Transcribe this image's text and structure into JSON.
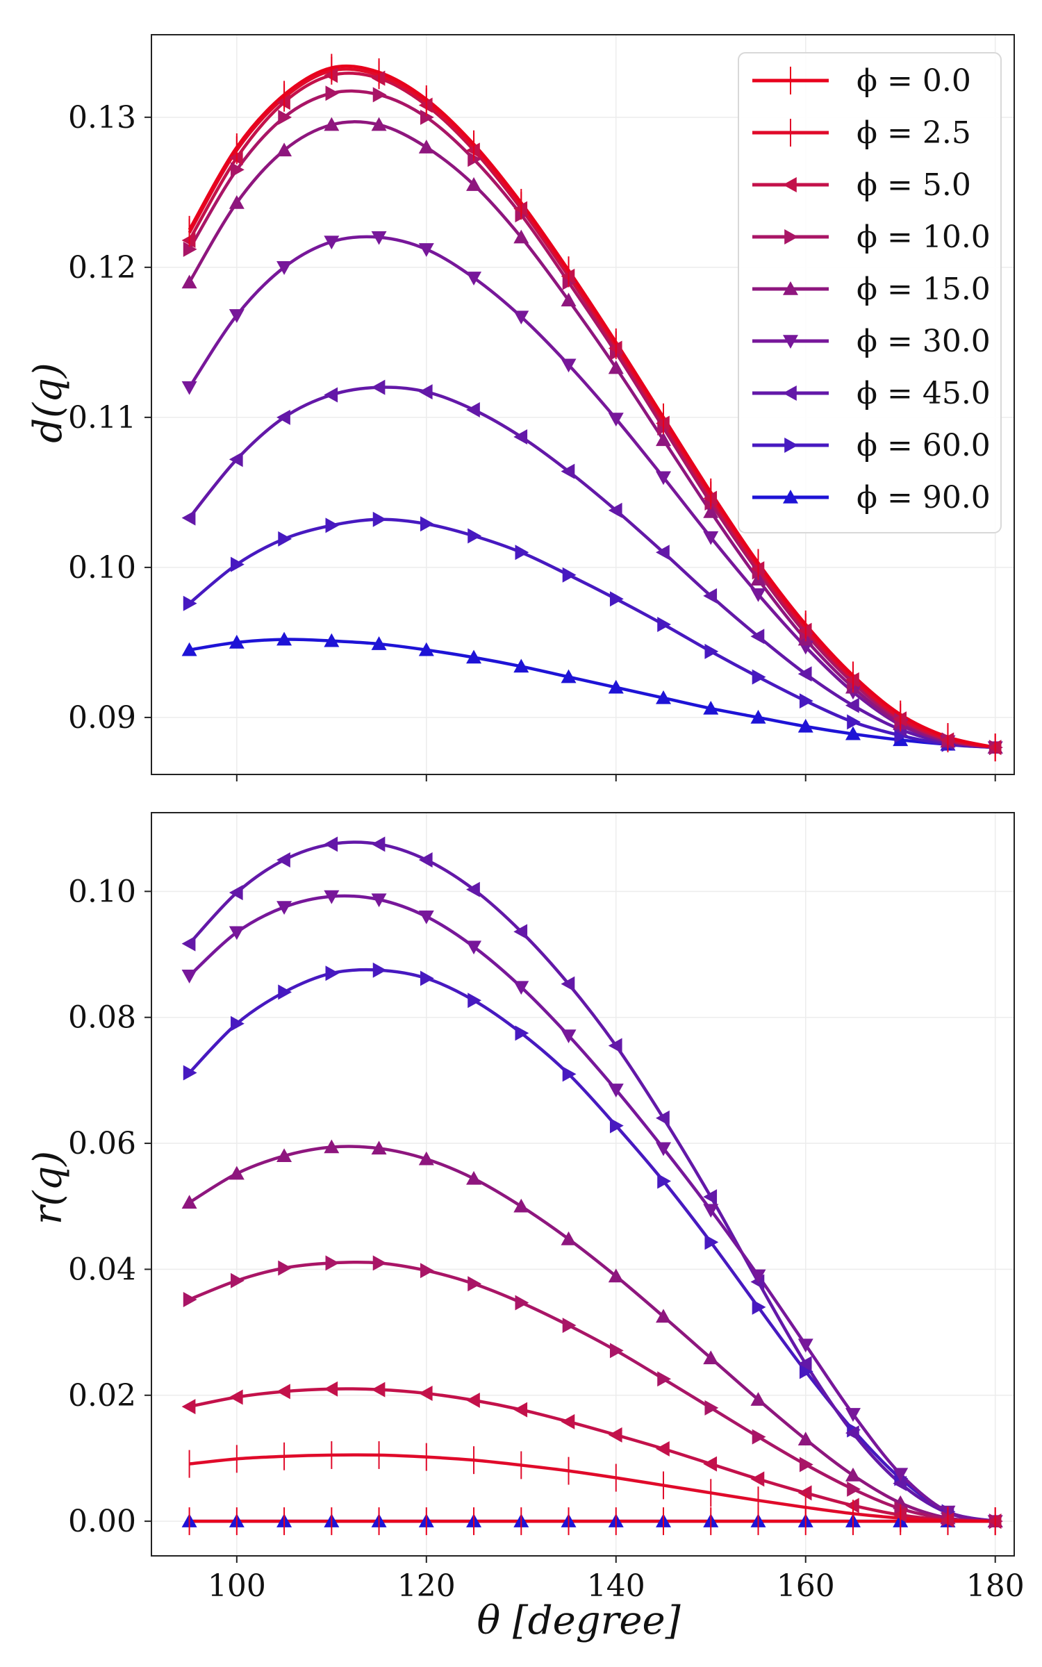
{
  "chart_data": [
    {
      "type": "line",
      "ylabel": "d(q)",
      "xlabel": "",
      "xlim": [
        91,
        182
      ],
      "ylim": [
        0.0862,
        0.1355
      ],
      "xticks": [
        100,
        120,
        140,
        160,
        180
      ],
      "xtick_labels": [
        "",
        "",
        "",
        "",
        ""
      ],
      "yticks": [
        0.09,
        0.1,
        0.11,
        0.12,
        0.13
      ],
      "ytick_labels": [
        "0.09",
        "0.10",
        "0.11",
        "0.12",
        "0.13"
      ],
      "grid": true,
      "legend_position": "top-right",
      "x": [
        95,
        100,
        105,
        110,
        115,
        120,
        125,
        130,
        135,
        140,
        145,
        150,
        155,
        160,
        165,
        170,
        175,
        180
      ],
      "series": [
        {
          "name": "ϕ = 0.0",
          "color": "#e8001c",
          "marker": "vline",
          "values": [
            0.1225,
            0.128,
            0.1315,
            0.1333,
            0.133,
            0.1312,
            0.1282,
            0.1243,
            0.1198,
            0.115,
            0.11,
            0.105,
            0.1003,
            0.0962,
            0.0928,
            0.0902,
            0.0887,
            0.088
          ]
        },
        {
          "name": "ϕ = 2.5",
          "color": "#e00a2a",
          "marker": "vline",
          "values": [
            0.1223,
            0.1278,
            0.1313,
            0.1331,
            0.1328,
            0.131,
            0.128,
            0.1241,
            0.1196,
            0.1148,
            0.1098,
            0.1048,
            0.1001,
            0.096,
            0.0926,
            0.09,
            0.0886,
            0.088
          ]
        },
        {
          "name": "ϕ = 5.0",
          "color": "#c3114a",
          "marker": "triangle-left",
          "values": [
            0.1218,
            0.1273,
            0.131,
            0.1328,
            0.1326,
            0.1308,
            0.1278,
            0.1239,
            0.1194,
            0.1146,
            0.1096,
            0.1046,
            0.0999,
            0.0958,
            0.0925,
            0.0899,
            0.0885,
            0.088
          ]
        },
        {
          "name": "ϕ = 10.0",
          "color": "#a91566",
          "marker": "triangle-right",
          "values": [
            0.1212,
            0.1265,
            0.13,
            0.1316,
            0.1315,
            0.13,
            0.1272,
            0.1235,
            0.119,
            0.1143,
            0.1093,
            0.1043,
            0.0997,
            0.0956,
            0.0923,
            0.0898,
            0.0885,
            0.088
          ]
        },
        {
          "name": "ϕ = 15.0",
          "color": "#8e167e",
          "marker": "triangle-up",
          "values": [
            0.119,
            0.1243,
            0.1278,
            0.1295,
            0.1295,
            0.128,
            0.1255,
            0.122,
            0.1178,
            0.1133,
            0.1085,
            0.1037,
            0.0992,
            0.0952,
            0.092,
            0.0896,
            0.0884,
            0.088
          ]
        },
        {
          "name": "ϕ = 30.0",
          "color": "#77179a",
          "marker": "triangle-down",
          "values": [
            0.112,
            0.1168,
            0.12,
            0.1217,
            0.122,
            0.1212,
            0.1193,
            0.1167,
            0.1135,
            0.1099,
            0.106,
            0.102,
            0.0982,
            0.0947,
            0.0917,
            0.0895,
            0.0884,
            0.088
          ]
        },
        {
          "name": "ϕ = 45.0",
          "color": "#6318a8",
          "marker": "triangle-left",
          "values": [
            0.1033,
            0.1072,
            0.11,
            0.1115,
            0.112,
            0.1117,
            0.1105,
            0.1087,
            0.1064,
            0.1038,
            0.101,
            0.0981,
            0.0954,
            0.0929,
            0.0908,
            0.0892,
            0.0883,
            0.088
          ]
        },
        {
          "name": "ϕ = 60.0",
          "color": "#4719c0",
          "marker": "triangle-right",
          "values": [
            0.0976,
            0.1002,
            0.1019,
            0.1028,
            0.1032,
            0.1029,
            0.1021,
            0.101,
            0.0995,
            0.0979,
            0.0962,
            0.0944,
            0.0927,
            0.0911,
            0.0897,
            0.0888,
            0.0882,
            0.088
          ]
        },
        {
          "name": "ϕ = 90.0",
          "color": "#1e13d6",
          "marker": "triangle-up",
          "values": [
            0.0945,
            0.095,
            0.0952,
            0.0951,
            0.0949,
            0.0945,
            0.094,
            0.0934,
            0.0927,
            0.092,
            0.0913,
            0.0906,
            0.09,
            0.0894,
            0.0889,
            0.0885,
            0.0882,
            0.088
          ]
        }
      ]
    },
    {
      "type": "line",
      "ylabel": "r(q)",
      "xlabel": "θ [degree]",
      "xlim": [
        91,
        182
      ],
      "ylim": [
        -0.0055,
        0.1125
      ],
      "xticks": [
        100,
        120,
        140,
        160,
        180
      ],
      "xtick_labels": [
        "100",
        "120",
        "140",
        "160",
        "180"
      ],
      "yticks": [
        0.0,
        0.02,
        0.04,
        0.06,
        0.08,
        0.1
      ],
      "ytick_labels": [
        "0.00",
        "0.02",
        "0.04",
        "0.06",
        "0.08",
        "0.10"
      ],
      "grid": true,
      "x": [
        95,
        100,
        105,
        110,
        115,
        120,
        125,
        130,
        135,
        140,
        145,
        150,
        155,
        160,
        165,
        170,
        175,
        180
      ],
      "series": [
        {
          "name": "ϕ = 0.0",
          "color": "#e8001c",
          "marker": "vline",
          "values": [
            0.0,
            0.0,
            0.0,
            0.0,
            0.0,
            0.0,
            0.0,
            0.0,
            0.0,
            0.0,
            0.0,
            0.0,
            0.0,
            0.0,
            0.0,
            0.0,
            0.0,
            0.0
          ]
        },
        {
          "name": "ϕ = 2.5",
          "color": "#e00a2a",
          "marker": "vline",
          "values": [
            0.0091,
            0.0099,
            0.0103,
            0.0105,
            0.0105,
            0.0102,
            0.0097,
            0.0089,
            0.008,
            0.0069,
            0.0057,
            0.0045,
            0.0033,
            0.0022,
            0.0012,
            0.0005,
            0.0001,
            0.0
          ]
        },
        {
          "name": "ϕ = 5.0",
          "color": "#c3114a",
          "marker": "triangle-left",
          "values": [
            0.0182,
            0.0197,
            0.0206,
            0.021,
            0.0209,
            0.0203,
            0.0192,
            0.0177,
            0.0158,
            0.0137,
            0.0115,
            0.0091,
            0.0067,
            0.0045,
            0.0025,
            0.001,
            0.0002,
            0.0
          ]
        },
        {
          "name": "ϕ = 10.0",
          "color": "#a91566",
          "marker": "triangle-right",
          "values": [
            0.0352,
            0.0382,
            0.0402,
            0.041,
            0.041,
            0.0398,
            0.0377,
            0.0347,
            0.0311,
            0.0271,
            0.0226,
            0.018,
            0.0134,
            0.009,
            0.0051,
            0.002,
            0.0004,
            0.0
          ]
        },
        {
          "name": "ϕ = 15.0",
          "color": "#8e167e",
          "marker": "triangle-up",
          "values": [
            0.0506,
            0.0552,
            0.058,
            0.0594,
            0.0592,
            0.0575,
            0.0544,
            0.05,
            0.0448,
            0.0389,
            0.0325,
            0.0259,
            0.0193,
            0.013,
            0.0073,
            0.0029,
            0.0005,
            0.0
          ]
        },
        {
          "name": "ϕ = 30.0",
          "color": "#77179a",
          "marker": "triangle-down",
          "values": [
            0.0866,
            0.0935,
            0.0975,
            0.0992,
            0.0987,
            0.096,
            0.0912,
            0.0848,
            0.0771,
            0.0685,
            0.0592,
            0.0494,
            0.039,
            0.028,
            0.017,
            0.0075,
            0.0015,
            0.0
          ]
        },
        {
          "name": "ϕ = 45.0",
          "color": "#6318a8",
          "marker": "triangle-left",
          "values": [
            0.0917,
            0.0998,
            0.105,
            0.1075,
            0.1075,
            0.105,
            0.1003,
            0.0936,
            0.0853,
            0.0755,
            0.064,
            0.0515,
            0.038,
            0.025,
            0.014,
            0.006,
            0.0013,
            0.0
          ]
        },
        {
          "name": "ϕ = 60.0",
          "color": "#4719c0",
          "marker": "triangle-right",
          "values": [
            0.0712,
            0.079,
            0.084,
            0.087,
            0.0875,
            0.0862,
            0.0827,
            0.0775,
            0.071,
            0.0628,
            0.054,
            0.0443,
            0.034,
            0.0238,
            0.0145,
            0.0068,
            0.0015,
            0.0
          ]
        },
        {
          "name": "ϕ = 90.0",
          "color": "#1e13d6",
          "marker": "triangle-up",
          "values": [
            0.0,
            0.0,
            0.0,
            0.0,
            0.0,
            0.0,
            0.0,
            0.0,
            0.0,
            0.0,
            0.0,
            0.0,
            0.0,
            0.0,
            0.0,
            0.0,
            0.0,
            0.0
          ]
        }
      ]
    }
  ]
}
